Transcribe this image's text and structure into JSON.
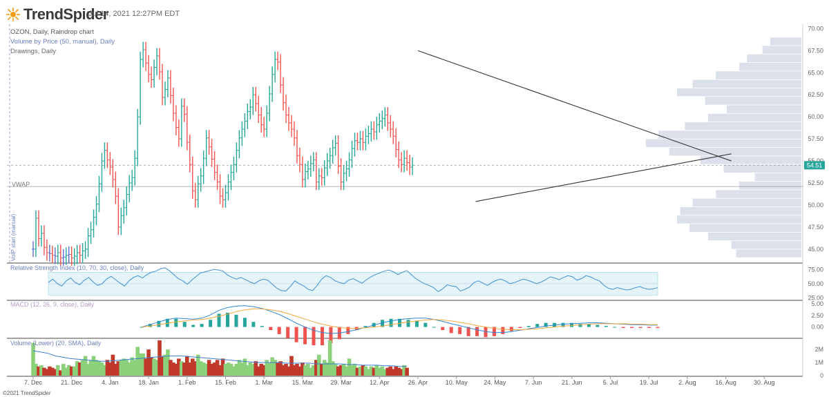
{
  "header": {
    "brand": "TrendSpider",
    "timestamp": "Jul 14, 2021 12:27PM EDT",
    "copyright": "©2021 TrendSpider",
    "colors": {
      "brand_orange": "#f39c12",
      "up": "#26a69a",
      "down": "#ef5350",
      "neutral": "#5b6cd6"
    }
  },
  "chart_data": [
    {
      "type": "candlestick",
      "title": "OZON, Daily, Raindrop chart",
      "overlays": [
        "Volume by Price (50, manual), Daily",
        "Drawings, Daily"
      ],
      "vwap_label": "VWAP",
      "vwap_value": 52.1,
      "vwap_start_label": "VoIP start (manual)",
      "last_price_label": "54.51",
      "last_price": 54.51,
      "ylim": [
        43.5,
        70.5
      ],
      "yticks": [
        "70.00",
        "67.50",
        "65.00",
        "62.50",
        "60.00",
        "57.50",
        "55.00",
        "52.50",
        "50.00",
        "47.50",
        "45.00"
      ],
      "xticks": [
        "7. Dec",
        "21. Dec",
        "4. Jan",
        "18. Jan",
        "1. Feb",
        "15. Feb",
        "1. Mar",
        "15. Mar",
        "29. Mar",
        "12. Apr",
        "26. Apr",
        "10. May",
        "24. May",
        "7. Jun",
        "21. Jun",
        "5. Jul",
        "19. Jul",
        "2. Aug",
        "16. Aug",
        "30. Aug"
      ],
      "closes": [
        45.0,
        48.5,
        46.2,
        46.8,
        45.2,
        44.6,
        44.5,
        44.3,
        44.2,
        44.6,
        44.0,
        44.1,
        44.3,
        44.4,
        44.0,
        44.2,
        44.6,
        44.3,
        44.8,
        45.0,
        46.5,
        47.2,
        48.6,
        50.1,
        52.4,
        55.0,
        56.2,
        55.1,
        54.3,
        52.9,
        51.0,
        47.5,
        48.8,
        49.7,
        51.2,
        52.5,
        53.1,
        55.3,
        60.0,
        66.5,
        67.6,
        66.1,
        64.8,
        64.2,
        65.6,
        66.9,
        65.1,
        62.2,
        63.1,
        64.4,
        62.4,
        60.4,
        58.8,
        57.5,
        61.2,
        60.3,
        57.1,
        54.6,
        51.6,
        50.6,
        52.4,
        53.3,
        55.3,
        57.6,
        56.6,
        55.2,
        53.7,
        52.6,
        51.0,
        50.6,
        51.4,
        52.6,
        53.7,
        54.6,
        56.2,
        57.6,
        58.6,
        59.5,
        60.6,
        61.1,
        62.5,
        61.5,
        60.2,
        59.1,
        58.6,
        60.4,
        62.6,
        64.8,
        66.5,
        66.2,
        63.6,
        61.6,
        60.2,
        59.3,
        58.6,
        57.6,
        55.6,
        54.6,
        52.9,
        53.8,
        54.1,
        54.7,
        55.1,
        52.6,
        53.3,
        53.1,
        54.2,
        55.0,
        55.6,
        56.5,
        57.0,
        54.4,
        52.6,
        53.6,
        54.1,
        55.1,
        56.4,
        57.3,
        57.1,
        57.5,
        57.1,
        57.8,
        58.1,
        58.6,
        58.3,
        59.1,
        59.5,
        59.8,
        60.2,
        59.3,
        58.6,
        57.8,
        56.3,
        55.1,
        54.6,
        55.3,
        54.8,
        54.3,
        54.51
      ],
      "volume_by_price": [
        0.42,
        0.45,
        0.6,
        0.72,
        0.8,
        0.78,
        0.7,
        0.55,
        0.4,
        0.3,
        0.5,
        0.65,
        0.85,
        1.0,
        0.92,
        0.75,
        0.6,
        0.48,
        0.62,
        0.8,
        0.7,
        0.55,
        0.4,
        0.35,
        0.25,
        0.2
      ],
      "trendlines": [
        {
          "from": [
            "26. Apr",
            67.5
          ],
          "to": [
            "16. Aug",
            55.0
          ]
        },
        {
          "from": [
            "17. May",
            50.4
          ],
          "to": [
            "16. Aug",
            55.8
          ]
        }
      ]
    },
    {
      "type": "line",
      "title": "Relative Strength Index (10, 70, 30, close), Daily",
      "ylim": [
        22,
        85
      ],
      "band": [
        30,
        70
      ],
      "yticks": [
        "75.00",
        "50.00",
        "25.00"
      ],
      "values": [
        52,
        58,
        50,
        46,
        55,
        60,
        52,
        48,
        56,
        61,
        53,
        47,
        50,
        58,
        63,
        57,
        51,
        46,
        55,
        61,
        64,
        60,
        66,
        70,
        72,
        76,
        78,
        73,
        66,
        59,
        55,
        49,
        56,
        63,
        69,
        71,
        73,
        75,
        74,
        72,
        65,
        61,
        58,
        61,
        57,
        53,
        50,
        55,
        58,
        56,
        49,
        42,
        38,
        37,
        45,
        55,
        50,
        46,
        40,
        38,
        47,
        58,
        64,
        61,
        55,
        52,
        50,
        56,
        59,
        55,
        51,
        57,
        62,
        66,
        69,
        72,
        74,
        71,
        66,
        70,
        73,
        66,
        59,
        54,
        50,
        47,
        43,
        36,
        41,
        48,
        46,
        45,
        37,
        40,
        44,
        52,
        55,
        51,
        47,
        52,
        56,
        58,
        55,
        50,
        52,
        55,
        58,
        56,
        53,
        50,
        53,
        57,
        62,
        60,
        57,
        61,
        64,
        62,
        56,
        59,
        64,
        62,
        58,
        55,
        47,
        42,
        40,
        43,
        41,
        39,
        40,
        43,
        45,
        42,
        40,
        41,
        43
      ]
    },
    {
      "type": "macd",
      "title": "MACD (12, 26, 9, close), Daily",
      "ylim": [
        -2.3,
        5.6
      ],
      "yticks": [
        "5.00",
        "2.50",
        "0.00"
      ],
      "macd": [
        0.0,
        0.5,
        1.1,
        1.6,
        1.9,
        1.8,
        1.7,
        1.9,
        2.6,
        3.6,
        4.2,
        4.5,
        4.6,
        4.4,
        4.0,
        3.4,
        2.7,
        1.8,
        0.8,
        0.0,
        -0.7,
        -1.2,
        -1.4,
        -1.3,
        -1.0,
        -0.6,
        -0.1,
        0.4,
        0.9,
        1.3,
        1.6,
        1.8,
        1.9,
        1.9,
        1.6,
        1.2,
        0.7,
        0.3,
        -0.2,
        -0.6,
        -1.0,
        -1.2,
        -1.2,
        -1.0,
        -0.7,
        -0.4,
        -0.1,
        0.2,
        0.4,
        0.6,
        0.7,
        0.8,
        0.9,
        0.9,
        0.8,
        0.7,
        0.6,
        0.5,
        0.5,
        0.4,
        0.4
      ],
      "signal": [
        0.0,
        0.2,
        0.5,
        0.8,
        1.1,
        1.3,
        1.5,
        1.6,
        1.9,
        2.3,
        2.8,
        3.3,
        3.7,
        3.9,
        3.9,
        3.7,
        3.4,
        2.9,
        2.3,
        1.7,
        1.1,
        0.6,
        0.2,
        -0.1,
        -0.3,
        -0.3,
        -0.2,
        0.0,
        0.2,
        0.5,
        0.8,
        1.1,
        1.3,
        1.5,
        1.6,
        1.5,
        1.3,
        1.0,
        0.7,
        0.3,
        0.0,
        -0.3,
        -0.5,
        -0.6,
        -0.6,
        -0.5,
        -0.4,
        -0.2,
        0.0,
        0.2,
        0.3,
        0.5,
        0.6,
        0.7,
        0.7,
        0.7,
        0.7,
        0.6,
        0.6,
        0.5,
        0.5
      ]
    },
    {
      "type": "bar",
      "title": "Volume (Lower) (20, SMA), Daily",
      "ylim": [
        0,
        2.8
      ],
      "yticks": [
        "2M",
        "1M",
        "0"
      ],
      "volumes": [
        2.5,
        0.9,
        0.7,
        0.8,
        0.6,
        0.5,
        0.7,
        0.6,
        0.5,
        0.8,
        0.4,
        0.9,
        0.6,
        0.8,
        0.7,
        0.7,
        1.1,
        1.0,
        1.2,
        1.5,
        0.9,
        1.2,
        1.5,
        1.2,
        1.1,
        1.0,
        0.8,
        1.2,
        1.0,
        1.6,
        0.9,
        1.1,
        1.2,
        1.3,
        1.2,
        1.0,
        1.4,
        1.2,
        2.2,
        1.7,
        1.7,
        1.3,
        2.0,
        1.4,
        1.3,
        1.2,
        2.7,
        1.5,
        1.6,
        2.0,
        1.2,
        1.0,
        0.9,
        1.3,
        1.1,
        1.0,
        1.5,
        1.0,
        1.3,
        1.1,
        1.6,
        1.1,
        1.0,
        0.9,
        1.2,
        0.9,
        1.0,
        1.2,
        0.8,
        1.3,
        0.9,
        1.0,
        0.9,
        0.7,
        0.9,
        1.2,
        1.0,
        1.3,
        0.8,
        1.0,
        0.9,
        1.1,
        0.7,
        0.9,
        0.8,
        1.2,
        1.0,
        1.4,
        1.2,
        1.0,
        1.1,
        0.8,
        0.9,
        0.7,
        1.5,
        0.8,
        0.9,
        0.7,
        1.0,
        0.8,
        0.9,
        0.6,
        0.8,
        1.2,
        1.6,
        0.9,
        1.2,
        1.0,
        2.7,
        1.1,
        0.9,
        0.7,
        0.8,
        0.9,
        0.7,
        1.3,
        0.8,
        0.9,
        0.6,
        0.7,
        0.8,
        0.7,
        0.5,
        0.7,
        0.6,
        0.8,
        0.6,
        0.7,
        0.5,
        0.6,
        0.7,
        0.5,
        0.7,
        0.6,
        0.5,
        0.8,
        0.6
      ],
      "sma": [
        1.9,
        1.8,
        1.7,
        1.5,
        1.4,
        1.3,
        1.25,
        1.2,
        1.15,
        1.1,
        1.1,
        1.15,
        1.2,
        1.25,
        1.3,
        1.35,
        1.4,
        1.45,
        1.5,
        1.5,
        1.5,
        1.45,
        1.4,
        1.35,
        1.3,
        1.25,
        1.2,
        1.15,
        1.1,
        1.05,
        1.0,
        1.0,
        1.0,
        1.0,
        0.95,
        0.95,
        0.95,
        0.95,
        0.9,
        0.9,
        0.9,
        0.9,
        0.85,
        0.85,
        0.8,
        0.8,
        0.8,
        0.75,
        0.75,
        0.7,
        0.7
      ]
    }
  ]
}
